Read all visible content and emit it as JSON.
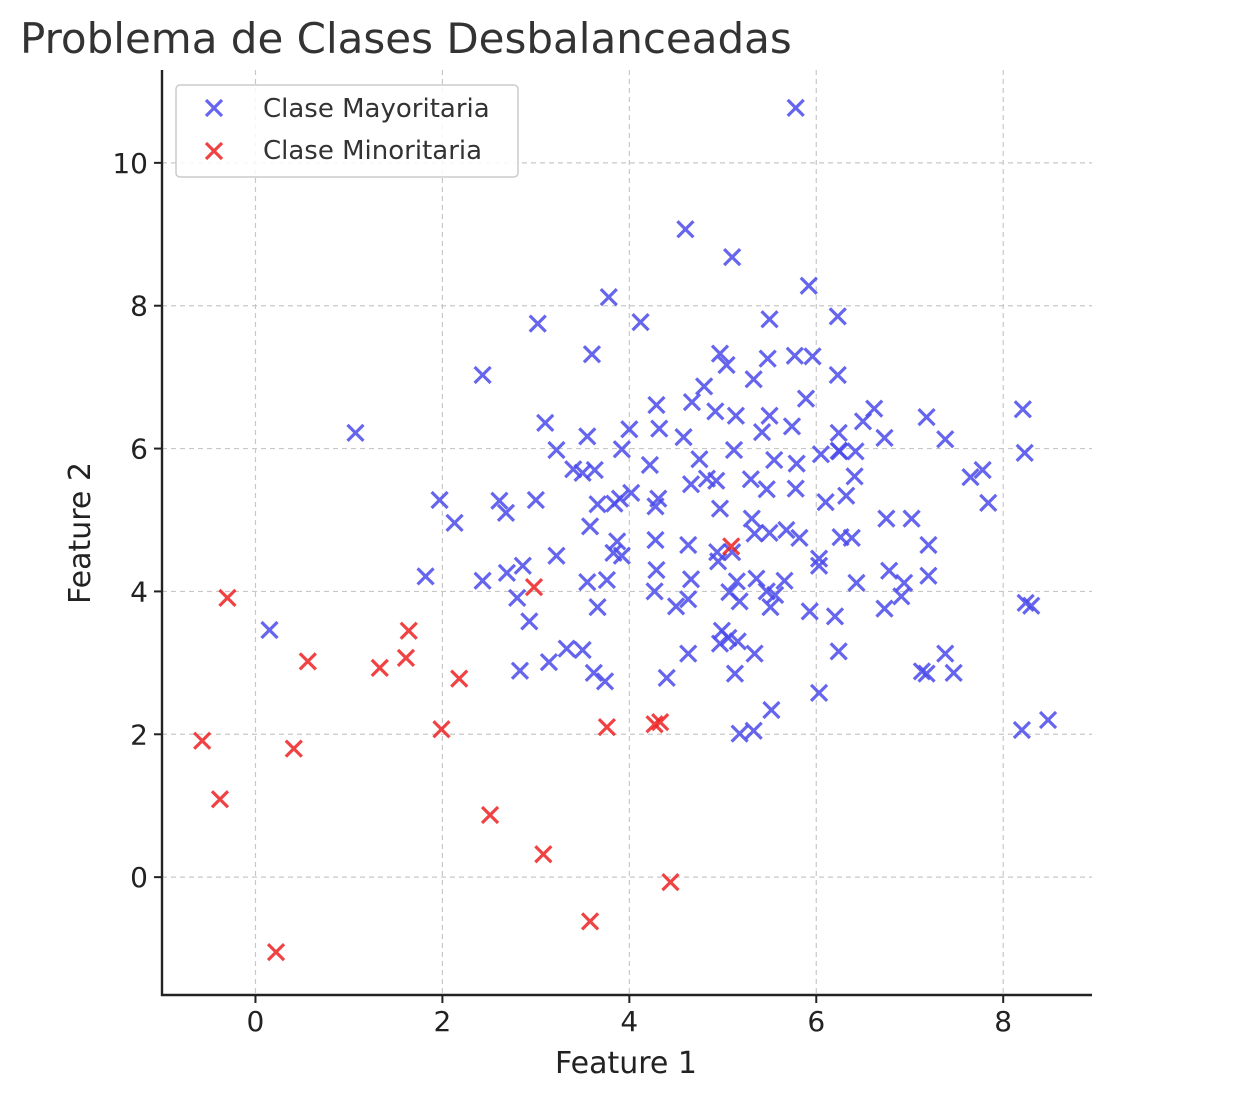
{
  "chart_data": {
    "type": "scatter",
    "title": "Problema de Clases Desbalanceadas",
    "xlabel": "Feature 1",
    "ylabel": "Feature 2",
    "xlim": [
      -1.0,
      8.95
    ],
    "ylim": [
      -1.65,
      11.3
    ],
    "x_ticks": [
      0,
      2,
      4,
      6,
      8
    ],
    "y_ticks": [
      0,
      2,
      4,
      6,
      8,
      10
    ],
    "grid": true,
    "legend_position": "top-left",
    "marker": "x",
    "series": [
      {
        "name": "Clase Mayoritaria",
        "color": "#4b4bea",
        "points": [
          [
            5.78,
            10.77
          ],
          [
            4.6,
            9.07
          ],
          [
            5.1,
            8.68
          ],
          [
            5.92,
            8.28
          ],
          [
            3.78,
            8.12
          ],
          [
            4.12,
            7.77
          ],
          [
            3.02,
            7.75
          ],
          [
            5.5,
            7.81
          ],
          [
            6.23,
            7.85
          ],
          [
            3.6,
            7.32
          ],
          [
            4.97,
            7.33
          ],
          [
            5.04,
            7.17
          ],
          [
            5.48,
            7.26
          ],
          [
            5.77,
            7.3
          ],
          [
            5.96,
            7.29
          ],
          [
            2.43,
            7.03
          ],
          [
            5.33,
            6.97
          ],
          [
            6.23,
            7.03
          ],
          [
            4.8,
            6.87
          ],
          [
            4.29,
            6.61
          ],
          [
            4.67,
            6.65
          ],
          [
            4.92,
            6.52
          ],
          [
            5.14,
            6.46
          ],
          [
            5.5,
            6.46
          ],
          [
            5.89,
            6.7
          ],
          [
            6.62,
            6.56
          ],
          [
            7.18,
            6.44
          ],
          [
            8.21,
            6.55
          ],
          [
            1.07,
            6.22
          ],
          [
            3.1,
            6.36
          ],
          [
            3.55,
            6.17
          ],
          [
            4.0,
            6.27
          ],
          [
            4.32,
            6.28
          ],
          [
            4.58,
            6.16
          ],
          [
            5.42,
            6.23
          ],
          [
            5.74,
            6.31
          ],
          [
            6.24,
            6.22
          ],
          [
            6.5,
            6.38
          ],
          [
            6.73,
            6.15
          ],
          [
            7.38,
            6.13
          ],
          [
            3.22,
            5.98
          ],
          [
            3.92,
            5.99
          ],
          [
            4.22,
            5.77
          ],
          [
            4.75,
            5.85
          ],
          [
            5.12,
            5.98
          ],
          [
            5.55,
            5.84
          ],
          [
            5.79,
            5.79
          ],
          [
            6.05,
            5.92
          ],
          [
            6.24,
            5.97
          ],
          [
            6.42,
            5.96
          ],
          [
            7.65,
            5.6
          ],
          [
            7.78,
            5.7
          ],
          [
            8.23,
            5.94
          ],
          [
            3.4,
            5.71
          ],
          [
            3.5,
            5.66
          ],
          [
            3.63,
            5.7
          ],
          [
            3.9,
            5.3
          ],
          [
            4.02,
            5.38
          ],
          [
            4.31,
            5.3
          ],
          [
            4.66,
            5.5
          ],
          [
            4.83,
            5.58
          ],
          [
            4.93,
            5.55
          ],
          [
            5.3,
            5.57
          ],
          [
            5.47,
            5.43
          ],
          [
            5.78,
            5.44
          ],
          [
            6.1,
            5.25
          ],
          [
            6.32,
            5.34
          ],
          [
            6.41,
            5.61
          ],
          [
            6.25,
            5.96
          ],
          [
            1.97,
            5.28
          ],
          [
            2.13,
            4.96
          ],
          [
            2.61,
            5.27
          ],
          [
            2.68,
            5.1
          ],
          [
            3.0,
            5.28
          ],
          [
            3.66,
            5.22
          ],
          [
            3.84,
            5.23
          ],
          [
            4.28,
            5.19
          ],
          [
            4.97,
            5.16
          ],
          [
            5.31,
            5.02
          ],
          [
            5.68,
            4.86
          ],
          [
            6.26,
            4.76
          ],
          [
            6.38,
            4.75
          ],
          [
            6.75,
            5.02
          ],
          [
            7.02,
            5.02
          ],
          [
            7.84,
            5.24
          ],
          [
            3.58,
            4.91
          ],
          [
            3.83,
            4.54
          ],
          [
            3.87,
            4.7
          ],
          [
            4.28,
            4.72
          ],
          [
            4.63,
            4.65
          ],
          [
            4.94,
            4.55
          ],
          [
            5.1,
            4.55
          ],
          [
            5.34,
            4.81
          ],
          [
            5.5,
            4.82
          ],
          [
            5.82,
            4.75
          ],
          [
            6.03,
            4.46
          ],
          [
            7.2,
            4.65
          ],
          [
            1.82,
            4.21
          ],
          [
            2.43,
            4.15
          ],
          [
            2.69,
            4.26
          ],
          [
            2.86,
            4.36
          ],
          [
            3.22,
            4.5
          ],
          [
            3.55,
            4.13
          ],
          [
            3.76,
            4.16
          ],
          [
            3.92,
            4.5
          ],
          [
            4.29,
            4.3
          ],
          [
            4.66,
            4.17
          ],
          [
            4.95,
            4.42
          ],
          [
            5.15,
            4.14
          ],
          [
            5.36,
            4.18
          ],
          [
            5.47,
            4.0
          ],
          [
            5.66,
            4.15
          ],
          [
            6.03,
            4.36
          ],
          [
            6.43,
            4.12
          ],
          [
            6.78,
            4.29
          ],
          [
            6.94,
            4.12
          ],
          [
            7.2,
            4.22
          ],
          [
            2.8,
            3.91
          ],
          [
            3.66,
            3.78
          ],
          [
            4.27,
            4.0
          ],
          [
            4.5,
            3.79
          ],
          [
            4.63,
            3.89
          ],
          [
            5.07,
            3.99
          ],
          [
            5.18,
            3.86
          ],
          [
            5.51,
            3.78
          ],
          [
            5.56,
            3.95
          ],
          [
            5.93,
            3.72
          ],
          [
            6.2,
            3.65
          ],
          [
            6.73,
            3.76
          ],
          [
            6.91,
            3.93
          ],
          [
            8.24,
            3.84
          ],
          [
            8.3,
            3.8
          ],
          [
            0.15,
            3.46
          ],
          [
            2.93,
            3.58
          ],
          [
            3.33,
            3.2
          ],
          [
            3.5,
            3.18
          ],
          [
            4.99,
            3.45
          ],
          [
            5.06,
            3.35
          ],
          [
            5.16,
            3.3
          ],
          [
            5.34,
            3.13
          ],
          [
            6.24,
            3.16
          ],
          [
            7.38,
            3.13
          ],
          [
            2.83,
            2.89
          ],
          [
            3.14,
            3.01
          ],
          [
            3.62,
            2.86
          ],
          [
            3.74,
            2.74
          ],
          [
            4.4,
            2.79
          ],
          [
            4.63,
            3.13
          ],
          [
            4.97,
            3.27
          ],
          [
            5.13,
            2.85
          ],
          [
            6.03,
            2.58
          ],
          [
            7.13,
            2.88
          ],
          [
            7.18,
            2.85
          ],
          [
            7.47,
            2.86
          ],
          [
            5.18,
            2.01
          ],
          [
            5.33,
            2.05
          ],
          [
            5.52,
            2.34
          ],
          [
            8.2,
            2.06
          ],
          [
            8.48,
            2.2
          ]
        ]
      },
      {
        "name": "Clase Minoritaria",
        "color": "#ee2222",
        "points": [
          [
            -0.3,
            3.91
          ],
          [
            -0.57,
            1.91
          ],
          [
            -0.38,
            1.09
          ],
          [
            0.56,
            3.02
          ],
          [
            0.41,
            1.8
          ],
          [
            0.22,
            -1.05
          ],
          [
            1.33,
            2.93
          ],
          [
            1.61,
            3.07
          ],
          [
            1.64,
            3.45
          ],
          [
            2.18,
            2.78
          ],
          [
            1.99,
            2.07
          ],
          [
            2.51,
            0.87
          ],
          [
            2.98,
            4.06
          ],
          [
            3.08,
            0.32
          ],
          [
            3.58,
            -0.62
          ],
          [
            3.76,
            2.1
          ],
          [
            4.27,
            2.14
          ],
          [
            4.33,
            2.17
          ],
          [
            4.44,
            -0.07
          ],
          [
            5.09,
            4.63
          ]
        ]
      }
    ]
  }
}
